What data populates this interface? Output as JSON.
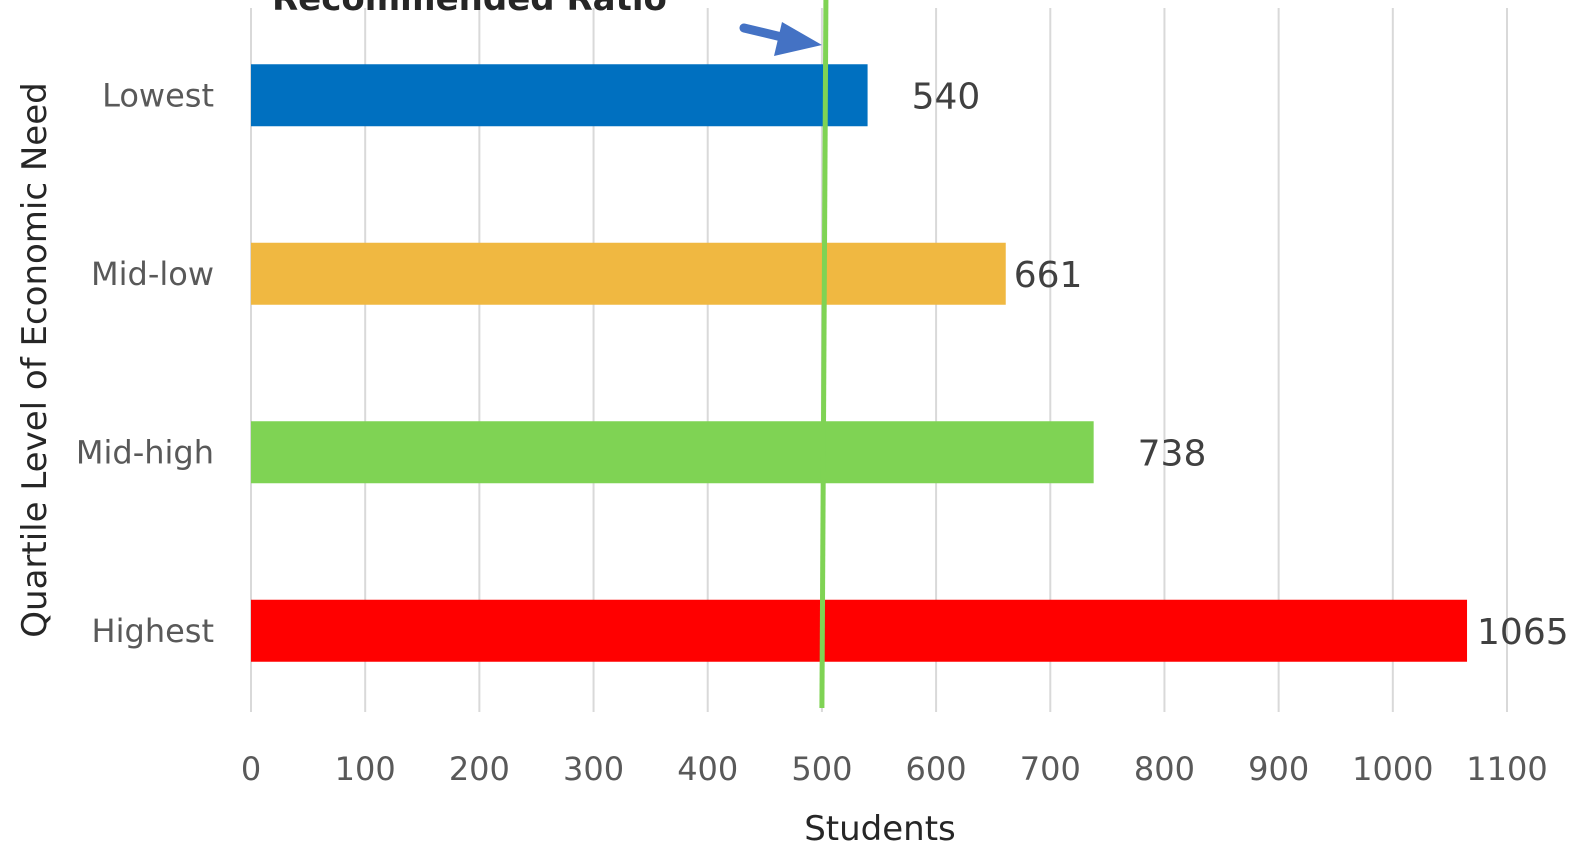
{
  "chart_data": {
    "type": "bar",
    "orientation": "horizontal",
    "title": "",
    "xlabel": "Students",
    "ylabel": "Quartile Level of Economic Need",
    "categories": [
      "Lowest",
      "Mid-low",
      "Mid-high",
      "Highest"
    ],
    "values": [
      540,
      661,
      738,
      1065
    ],
    "data_labels": [
      "540",
      "661",
      "738",
      "1065"
    ],
    "bar_colors": [
      "#0070c0",
      "#f0b841",
      "#7fd354",
      "#ff0000"
    ],
    "xlim": [
      0,
      1100
    ],
    "x_ticks": [
      0,
      100,
      200,
      300,
      400,
      500,
      600,
      700,
      800,
      900,
      1000,
      1100
    ],
    "x_tick_labels": [
      "0",
      "100",
      "200",
      "300",
      "400",
      "500",
      "600",
      "700",
      "800",
      "900",
      "1000",
      "1100"
    ],
    "grid": true,
    "legend": "none",
    "reference_line": {
      "value": 500,
      "label": "Recommended Ratio",
      "color": "#7fd354",
      "arrow_color": "#4472c4"
    }
  }
}
